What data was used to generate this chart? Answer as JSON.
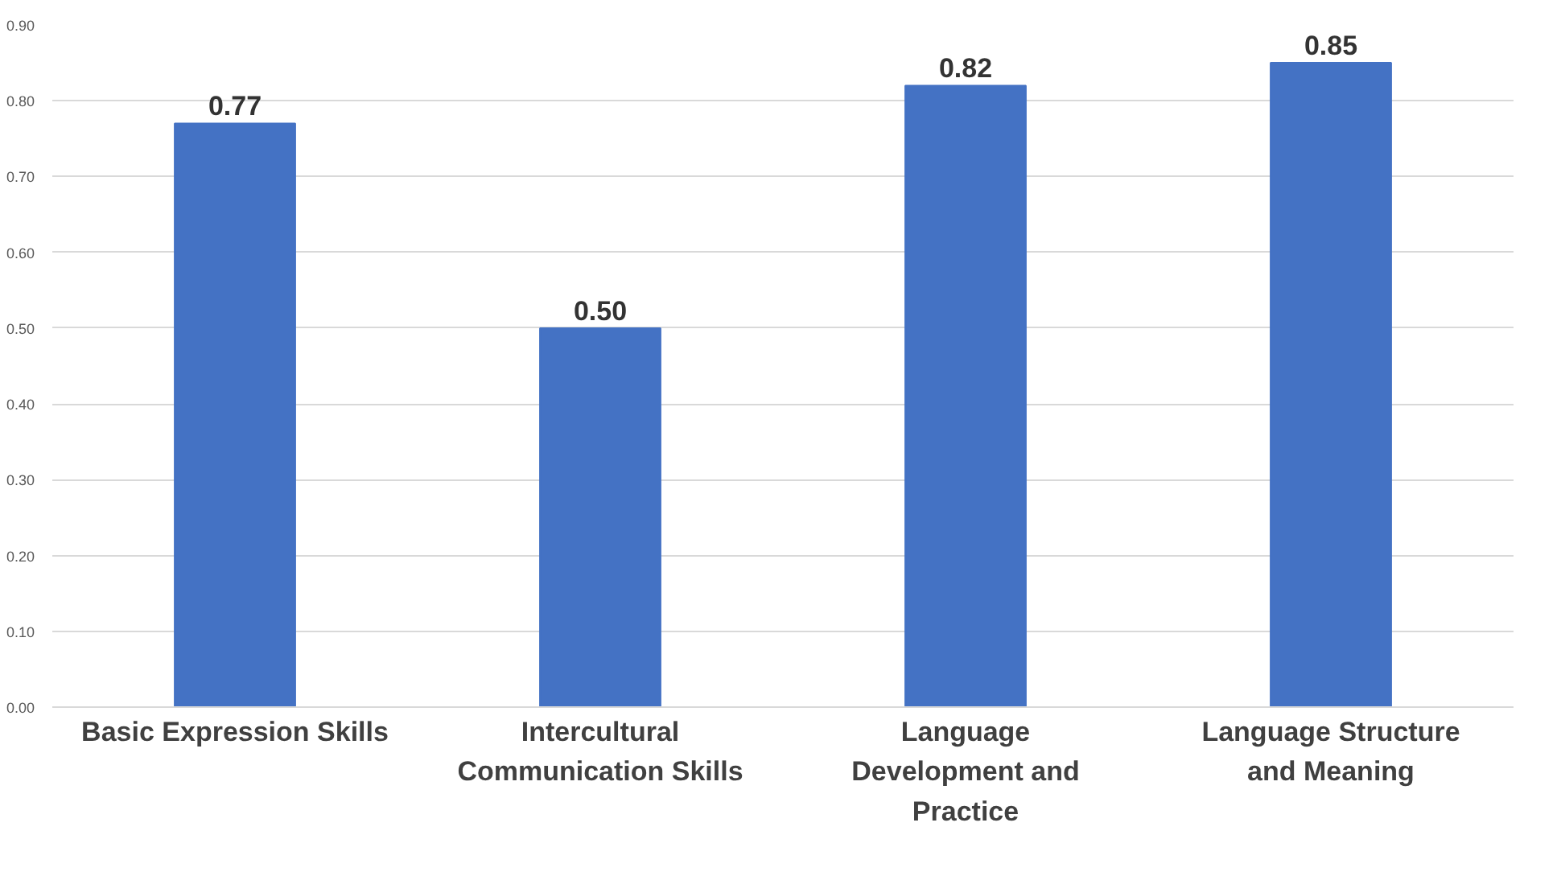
{
  "chart_data": {
    "type": "bar",
    "categories": [
      "Basic Expression Skills",
      "Intercultural\nCommunication Skills",
      "Language\nDevelopment and\nPractice",
      "Language Structure\nand Meaning"
    ],
    "values": [
      0.77,
      0.5,
      0.82,
      0.85
    ],
    "value_labels": [
      "0.77",
      "0.50",
      "0.82",
      "0.85"
    ],
    "color": "#4472c4",
    "ylim": [
      0,
      0.9
    ],
    "yticks": [
      {
        "value": 0,
        "label": "0.00"
      },
      {
        "value": 0.1,
        "label": "0.10"
      },
      {
        "value": 0.2,
        "label": "0.20"
      },
      {
        "value": 0.3,
        "label": "0.30"
      },
      {
        "value": 0.4,
        "label": "0.40"
      },
      {
        "value": 0.5,
        "label": "0.50"
      },
      {
        "value": 0.6,
        "label": "0.60"
      },
      {
        "value": 0.7,
        "label": "0.70"
      },
      {
        "value": 0.8,
        "label": "0.80"
      },
      {
        "value": 0.9,
        "label": "0.90"
      }
    ],
    "grid": "y"
  }
}
